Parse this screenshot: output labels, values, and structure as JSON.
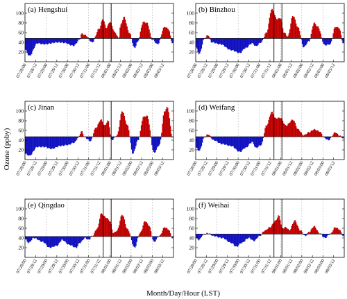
{
  "figure": {
    "ylabel": "Ozone (ppby)",
    "xlabel": "Month/Day/Hour (LST)"
  },
  "colors": {
    "above": "#c00000",
    "below": "#1010c0",
    "frame": "#000000",
    "grid": "#b5b5b5"
  },
  "chart_data": [
    {
      "type": "area",
      "title": "(a) Hengshui",
      "baseline": 48,
      "ylim": [
        0,
        120
      ],
      "yticks": [
        20,
        40,
        60,
        80,
        100
      ],
      "x_start": "07/28/00",
      "x_end": "08/03/23",
      "x_tick_labels": [
        "07/28/00",
        "07/28/12",
        "07/29/00",
        "07/29/12",
        "07/30/00",
        "07/30/12",
        "07/31/00",
        "07/31/12",
        "08/01/00",
        "08/01/12",
        "08/02/00",
        "08/02/12",
        "08/03/00",
        "08/03/12"
      ],
      "vlines": [
        "07/31/16",
        "08/01/01"
      ],
      "peaks": [
        {
          "hour": 0,
          "value": 25
        },
        {
          "hour": 5,
          "value": 12
        },
        {
          "hour": 14,
          "value": 38
        },
        {
          "hour": 21,
          "value": 36
        },
        {
          "hour": 38,
          "value": 40
        },
        {
          "hour": 44,
          "value": 39
        },
        {
          "hour": 55,
          "value": 33
        },
        {
          "hour": 62,
          "value": 46
        },
        {
          "hour": 64,
          "value": 58
        },
        {
          "hour": 68,
          "value": 55
        },
        {
          "hour": 76,
          "value": 40
        },
        {
          "hour": 84,
          "value": 68
        },
        {
          "hour": 88,
          "value": 88
        },
        {
          "hour": 92,
          "value": 70
        },
        {
          "hour": 96,
          "value": 82
        },
        {
          "hour": 102,
          "value": 60
        },
        {
          "hour": 106,
          "value": 48
        },
        {
          "hour": 108,
          "value": 75
        },
        {
          "hour": 112,
          "value": 92
        },
        {
          "hour": 118,
          "value": 60
        },
        {
          "hour": 124,
          "value": 28
        },
        {
          "hour": 127,
          "value": 40
        },
        {
          "hour": 134,
          "value": 82
        },
        {
          "hour": 138,
          "value": 80
        },
        {
          "hour": 144,
          "value": 46
        },
        {
          "hour": 150,
          "value": 36
        },
        {
          "hour": 158,
          "value": 72
        },
        {
          "hour": 162,
          "value": 68
        },
        {
          "hour": 167,
          "value": 38
        }
      ]
    },
    {
      "type": "area",
      "title": "(b) Binzhou",
      "baseline": 48,
      "ylim": [
        0,
        120
      ],
      "yticks": [
        20,
        40,
        60,
        80,
        100
      ],
      "x_start": "07/28/00",
      "x_end": "08/03/23",
      "x_tick_labels": [
        "07/28/00",
        "07/28/12",
        "07/29/00",
        "07/29/12",
        "07/30/00",
        "07/30/12",
        "07/31/00",
        "07/31/12",
        "08/01/00",
        "08/01/12",
        "08/02/00",
        "08/02/12",
        "08/03/00",
        "08/03/12"
      ],
      "vlines": [
        "07/31/16",
        "08/01/01"
      ],
      "peaks": [
        {
          "hour": 0,
          "value": 30
        },
        {
          "hour": 4,
          "value": 16
        },
        {
          "hour": 10,
          "value": 48
        },
        {
          "hour": 14,
          "value": 55
        },
        {
          "hour": 18,
          "value": 40
        },
        {
          "hour": 28,
          "value": 36
        },
        {
          "hour": 40,
          "value": 24
        },
        {
          "hour": 50,
          "value": 18
        },
        {
          "hour": 56,
          "value": 28
        },
        {
          "hour": 64,
          "value": 38
        },
        {
          "hour": 68,
          "value": 32
        },
        {
          "hour": 74,
          "value": 40
        },
        {
          "hour": 80,
          "value": 60
        },
        {
          "hour": 86,
          "value": 108
        },
        {
          "hour": 92,
          "value": 88
        },
        {
          "hour": 96,
          "value": 90
        },
        {
          "hour": 100,
          "value": 60
        },
        {
          "hour": 104,
          "value": 52
        },
        {
          "hour": 110,
          "value": 95
        },
        {
          "hour": 116,
          "value": 70
        },
        {
          "hour": 122,
          "value": 30
        },
        {
          "hour": 128,
          "value": 42
        },
        {
          "hour": 134,
          "value": 80
        },
        {
          "hour": 138,
          "value": 72
        },
        {
          "hour": 146,
          "value": 34
        },
        {
          "hour": 152,
          "value": 36
        },
        {
          "hour": 158,
          "value": 72
        },
        {
          "hour": 162,
          "value": 70
        },
        {
          "hour": 167,
          "value": 38
        }
      ]
    },
    {
      "type": "area",
      "title": "(c) Jinan",
      "baseline": 47,
      "ylim": [
        0,
        120
      ],
      "yticks": [
        20,
        40,
        60,
        80,
        100
      ],
      "x_start": "07/28/00",
      "x_end": "08/03/23",
      "x_tick_labels": [
        "07/28/00",
        "07/28/12",
        "07/29/00",
        "07/29/12",
        "07/30/00",
        "07/30/12",
        "07/31/00",
        "07/31/12",
        "08/01/00",
        "08/01/12",
        "08/02/00",
        "08/02/12",
        "08/03/00",
        "08/03/12"
      ],
      "vlines": [
        "07/31/16",
        "08/01/01"
      ],
      "peaks": [
        {
          "hour": 0,
          "value": 12
        },
        {
          "hour": 5,
          "value": 8
        },
        {
          "hour": 14,
          "value": 26
        },
        {
          "hour": 22,
          "value": 26
        },
        {
          "hour": 30,
          "value": 22
        },
        {
          "hour": 40,
          "value": 28
        },
        {
          "hour": 48,
          "value": 30
        },
        {
          "hour": 56,
          "value": 35
        },
        {
          "hour": 60,
          "value": 45
        },
        {
          "hour": 64,
          "value": 58
        },
        {
          "hour": 68,
          "value": 45
        },
        {
          "hour": 74,
          "value": 38
        },
        {
          "hour": 80,
          "value": 65
        },
        {
          "hour": 86,
          "value": 82
        },
        {
          "hour": 90,
          "value": 70
        },
        {
          "hour": 94,
          "value": 80
        },
        {
          "hour": 98,
          "value": 40
        },
        {
          "hour": 104,
          "value": 50
        },
        {
          "hour": 110,
          "value": 100
        },
        {
          "hour": 116,
          "value": 70
        },
        {
          "hour": 122,
          "value": 12
        },
        {
          "hour": 128,
          "value": 40
        },
        {
          "hour": 134,
          "value": 88
        },
        {
          "hour": 138,
          "value": 90
        },
        {
          "hour": 146,
          "value": 14
        },
        {
          "hour": 152,
          "value": 30
        },
        {
          "hour": 158,
          "value": 100
        },
        {
          "hour": 161,
          "value": 108
        },
        {
          "hour": 167,
          "value": 45
        }
      ]
    },
    {
      "type": "area",
      "title": "(d) Weifang",
      "baseline": 47,
      "ylim": [
        0,
        120
      ],
      "yticks": [
        20,
        40,
        60,
        80,
        100
      ],
      "x_start": "07/28/00",
      "x_end": "08/03/23",
      "x_tick_labels": [
        "07/28/00",
        "07/28/12",
        "07/29/00",
        "07/29/12",
        "07/30/00",
        "07/30/12",
        "07/31/00",
        "07/31/12",
        "08/01/00",
        "08/01/12",
        "08/02/00",
        "08/02/12",
        "08/03/00",
        "08/03/12"
      ],
      "vlines": [
        "07/31/16",
        "08/01/01"
      ],
      "peaks": [
        {
          "hour": 0,
          "value": 25
        },
        {
          "hour": 4,
          "value": 18
        },
        {
          "hour": 10,
          "value": 46
        },
        {
          "hour": 14,
          "value": 52
        },
        {
          "hour": 20,
          "value": 40
        },
        {
          "hour": 30,
          "value": 32
        },
        {
          "hour": 40,
          "value": 28
        },
        {
          "hour": 50,
          "value": 16
        },
        {
          "hour": 56,
          "value": 24
        },
        {
          "hour": 64,
          "value": 36
        },
        {
          "hour": 68,
          "value": 24
        },
        {
          "hour": 74,
          "value": 30
        },
        {
          "hour": 80,
          "value": 70
        },
        {
          "hour": 86,
          "value": 98
        },
        {
          "hour": 90,
          "value": 85
        },
        {
          "hour": 96,
          "value": 86
        },
        {
          "hour": 102,
          "value": 70
        },
        {
          "hour": 110,
          "value": 82
        },
        {
          "hour": 116,
          "value": 62
        },
        {
          "hour": 122,
          "value": 50
        },
        {
          "hour": 128,
          "value": 56
        },
        {
          "hour": 134,
          "value": 62
        },
        {
          "hour": 140,
          "value": 58
        },
        {
          "hour": 146,
          "value": 44
        },
        {
          "hour": 150,
          "value": 40
        },
        {
          "hour": 158,
          "value": 56
        },
        {
          "hour": 162,
          "value": 50
        },
        {
          "hour": 167,
          "value": 44
        }
      ]
    },
    {
      "type": "area",
      "title": "(e) Qingdao",
      "baseline": 43,
      "ylim": [
        0,
        120
      ],
      "yticks": [
        20,
        40,
        60,
        80,
        100
      ],
      "x_start": "07/28/00",
      "x_end": "08/03/23",
      "x_tick_labels": [
        "07/28/00",
        "07/28/12",
        "07/29/00",
        "07/29/12",
        "07/30/00",
        "07/30/12",
        "07/31/00",
        "07/31/12",
        "08/01/00",
        "08/01/12",
        "08/02/00",
        "08/02/12",
        "08/03/00",
        "08/03/12"
      ],
      "vlines": [
        "07/31/16",
        "08/01/01"
      ],
      "peaks": [
        {
          "hour": 0,
          "value": 38
        },
        {
          "hour": 4,
          "value": 30
        },
        {
          "hour": 10,
          "value": 40
        },
        {
          "hour": 20,
          "value": 32
        },
        {
          "hour": 28,
          "value": 20
        },
        {
          "hour": 36,
          "value": 24
        },
        {
          "hour": 42,
          "value": 36
        },
        {
          "hour": 50,
          "value": 26
        },
        {
          "hour": 58,
          "value": 20
        },
        {
          "hour": 62,
          "value": 30
        },
        {
          "hour": 68,
          "value": 40
        },
        {
          "hour": 72,
          "value": 36
        },
        {
          "hour": 76,
          "value": 44
        },
        {
          "hour": 82,
          "value": 60
        },
        {
          "hour": 86,
          "value": 90
        },
        {
          "hour": 92,
          "value": 82
        },
        {
          "hour": 96,
          "value": 75
        },
        {
          "hour": 100,
          "value": 50
        },
        {
          "hour": 104,
          "value": 55
        },
        {
          "hour": 110,
          "value": 88
        },
        {
          "hour": 116,
          "value": 58
        },
        {
          "hour": 124,
          "value": 20
        },
        {
          "hour": 130,
          "value": 50
        },
        {
          "hour": 136,
          "value": 75
        },
        {
          "hour": 140,
          "value": 66
        },
        {
          "hour": 146,
          "value": 32
        },
        {
          "hour": 152,
          "value": 44
        },
        {
          "hour": 158,
          "value": 62
        },
        {
          "hour": 162,
          "value": 58
        },
        {
          "hour": 167,
          "value": 40
        }
      ]
    },
    {
      "type": "area",
      "title": "(f) Weihai",
      "baseline": 48,
      "ylim": [
        0,
        120
      ],
      "yticks": [
        20,
        40,
        60,
        80,
        100
      ],
      "x_start": "07/28/00",
      "x_end": "08/03/23",
      "x_tick_labels": [
        "07/28/00",
        "07/28/12",
        "07/29/00",
        "07/29/12",
        "07/30/00",
        "07/30/12",
        "07/31/00",
        "07/31/12",
        "08/01/00",
        "08/01/12",
        "08/02/00",
        "08/02/12",
        "08/03/00",
        "08/03/12"
      ],
      "vlines": [
        "07/31/16",
        "08/01/01"
      ],
      "peaks": [
        {
          "hour": 0,
          "value": 40
        },
        {
          "hour": 4,
          "value": 36
        },
        {
          "hour": 8,
          "value": 46
        },
        {
          "hour": 14,
          "value": 50
        },
        {
          "hour": 20,
          "value": 44
        },
        {
          "hour": 30,
          "value": 40
        },
        {
          "hour": 40,
          "value": 30
        },
        {
          "hour": 46,
          "value": 22
        },
        {
          "hour": 52,
          "value": 30
        },
        {
          "hour": 60,
          "value": 40
        },
        {
          "hour": 66,
          "value": 34
        },
        {
          "hour": 72,
          "value": 44
        },
        {
          "hour": 78,
          "value": 55
        },
        {
          "hour": 84,
          "value": 62
        },
        {
          "hour": 90,
          "value": 75
        },
        {
          "hour": 94,
          "value": 86
        },
        {
          "hour": 98,
          "value": 60
        },
        {
          "hour": 102,
          "value": 62
        },
        {
          "hour": 106,
          "value": 56
        },
        {
          "hour": 112,
          "value": 76
        },
        {
          "hour": 118,
          "value": 56
        },
        {
          "hour": 124,
          "value": 44
        },
        {
          "hour": 128,
          "value": 52
        },
        {
          "hour": 134,
          "value": 64
        },
        {
          "hour": 140,
          "value": 50
        },
        {
          "hour": 146,
          "value": 40
        },
        {
          "hour": 152,
          "value": 48
        },
        {
          "hour": 158,
          "value": 62
        },
        {
          "hour": 162,
          "value": 58
        },
        {
          "hour": 167,
          "value": 44
        }
      ]
    }
  ]
}
